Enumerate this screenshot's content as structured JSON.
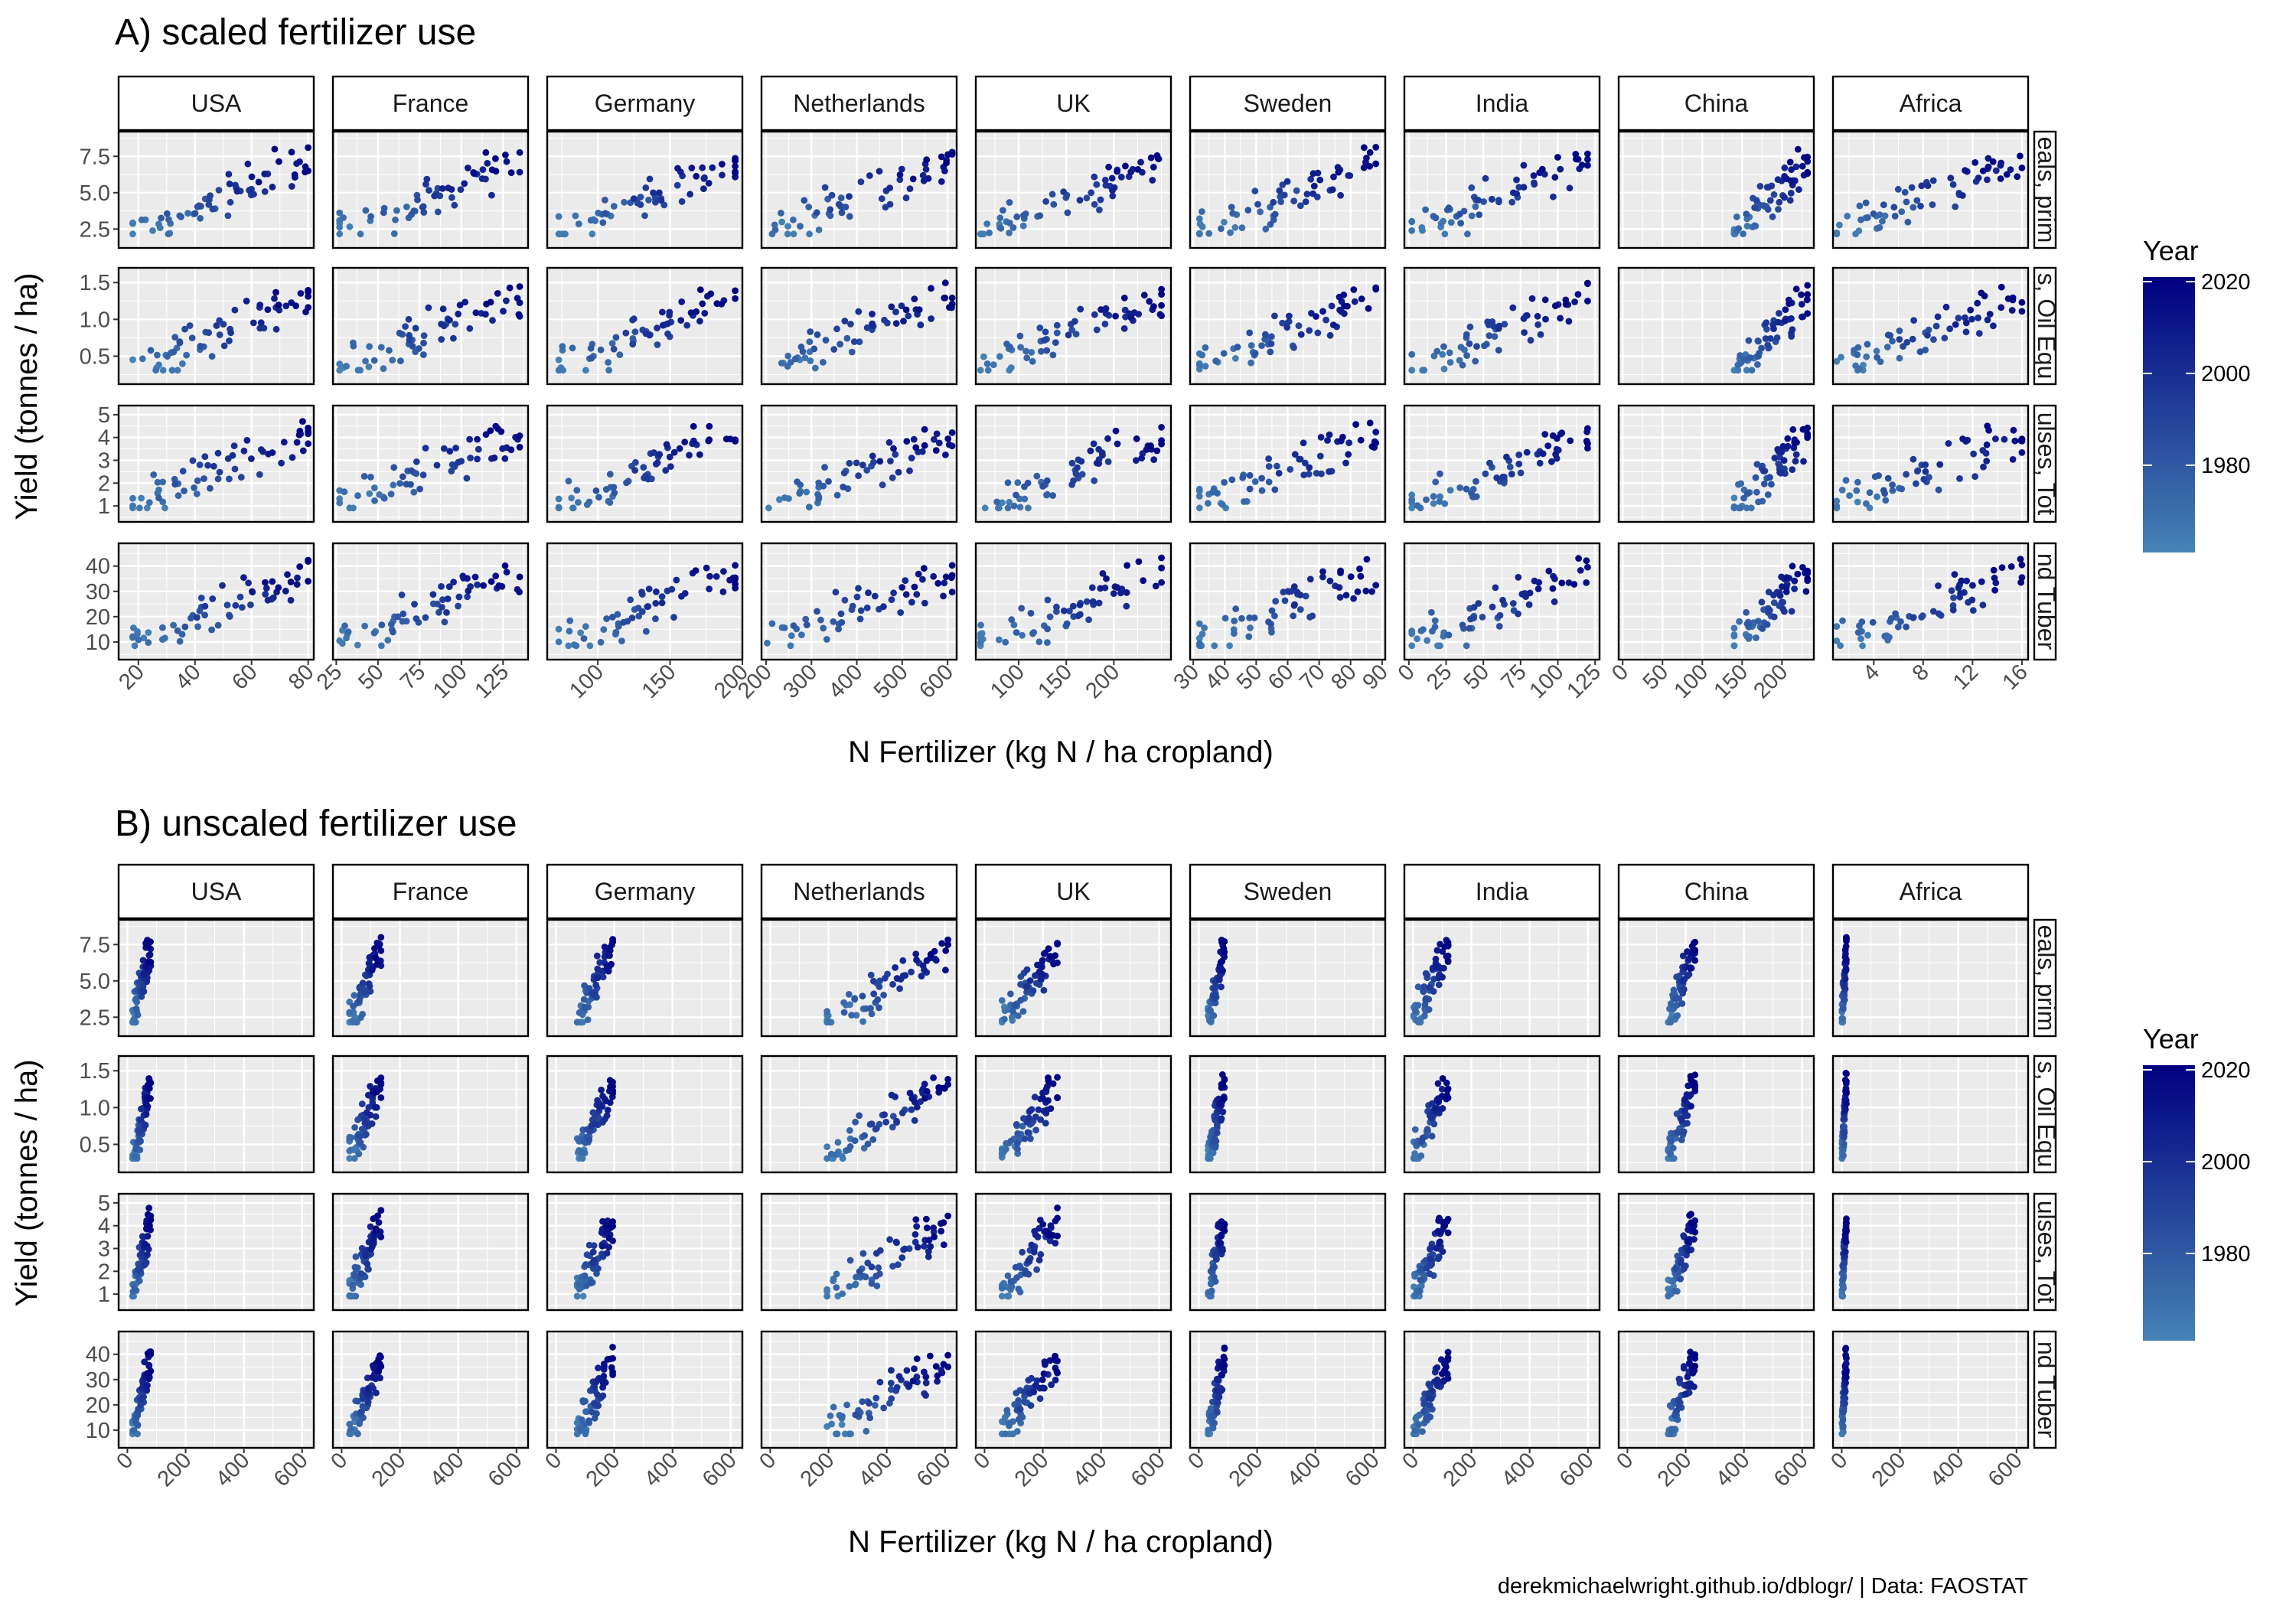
{
  "caption": "derekmichaelwright.github.io/dblogr/ | Data: FAOSTAT",
  "x_title": "N Fertilizer (kg N / ha cropland)",
  "y_title": "Yield (tonnes / ha)",
  "legend": {
    "title": "Year",
    "range": [
      1961,
      2021
    ],
    "ticks": [
      1980,
      2000,
      2020
    ],
    "color_low": "#4682b4",
    "color_high": "#000080"
  },
  "colors": {
    "panel_bg": "#ebebeb",
    "strip_bg": "#ffffff",
    "border": "#000000"
  },
  "chart_data": [
    {
      "type": "scatter",
      "title": "A) scaled fertilizer use",
      "x_scales": "free",
      "columns": [
        "USA",
        "France",
        "Germany",
        "Netherlands",
        "UK",
        "Sweden",
        "India",
        "China",
        "Africa"
      ],
      "rows": [
        "eals, prim",
        "s, Oil Equ",
        "ulses, Tot",
        "nd Tuber"
      ],
      "row_ylim": [
        [
          1.2,
          9.2
        ],
        [
          0.12,
          1.7
        ],
        [
          0.3,
          5.4
        ],
        [
          3,
          49
        ]
      ],
      "row_yticks": [
        [
          "2.5",
          "5.0",
          "7.5"
        ],
        [
          "0.5",
          "1.0",
          "1.5"
        ],
        [
          "1",
          "2",
          "3",
          "4",
          "5"
        ],
        [
          "10",
          "20",
          "30",
          "40"
        ]
      ],
      "col_xlim": [
        [
          13,
          82
        ],
        [
          23,
          140
        ],
        [
          65,
          200
        ],
        [
          190,
          620
        ],
        [
          55,
          260
        ],
        [
          29,
          91
        ],
        [
          -3,
          128
        ],
        [
          -5,
          240
        ],
        [
          0.7,
          16.5
        ]
      ],
      "col_xticks": [
        [
          "20",
          "40",
          "60",
          "80"
        ],
        [
          "25",
          "50",
          "75",
          "100",
          "125"
        ],
        [
          "100",
          "150",
          "200"
        ],
        [
          "200",
          "300",
          "400",
          "500",
          "600"
        ],
        [
          "100",
          "150",
          "200"
        ],
        [
          "30",
          "40",
          "50",
          "60",
          "70",
          "80",
          "90"
        ],
        [
          "0",
          "25",
          "50",
          "75",
          "100",
          "125"
        ],
        [
          "0",
          "50",
          "100",
          "150",
          "200"
        ],
        [
          "4",
          "8",
          "12",
          "16"
        ]
      ],
      "col_xstep": [
        10,
        12.5,
        25,
        50,
        25,
        5,
        12.5,
        25,
        2
      ],
      "col_span": [
        [
          18,
          80
        ],
        [
          27,
          135
        ],
        [
          73,
          195
        ],
        [
          195,
          610
        ],
        [
          60,
          250
        ],
        [
          32,
          88
        ],
        [
          2,
          120
        ],
        [
          140,
          232
        ],
        [
          1,
          16
        ]
      ]
    },
    {
      "type": "scatter",
      "title": "B) unscaled fertilizer use",
      "x_scales": "fixed",
      "columns": [
        "USA",
        "France",
        "Germany",
        "Netherlands",
        "UK",
        "Sweden",
        "India",
        "China",
        "Africa"
      ],
      "rows": [
        "eals, prim",
        "s, Oil Equ",
        "ulses, Tot",
        "nd Tuber"
      ],
      "row_ylim": [
        [
          1.2,
          9.2
        ],
        [
          0.12,
          1.7
        ],
        [
          0.3,
          5.4
        ],
        [
          3,
          49
        ]
      ],
      "row_yticks": [
        [
          "2.5",
          "5.0",
          "7.5"
        ],
        [
          "0.5",
          "1.0",
          "1.5"
        ],
        [
          "1",
          "2",
          "3",
          "4",
          "5"
        ],
        [
          "10",
          "20",
          "30",
          "40"
        ]
      ],
      "xlim": [
        -30,
        640
      ],
      "xticks": [
        "0",
        "200",
        "400",
        "600"
      ],
      "col_span": [
        [
          18,
          80
        ],
        [
          27,
          135
        ],
        [
          73,
          195
        ],
        [
          195,
          610
        ],
        [
          60,
          250
        ],
        [
          32,
          88
        ],
        [
          2,
          120
        ],
        [
          140,
          232
        ],
        [
          1,
          16
        ]
      ]
    }
  ]
}
